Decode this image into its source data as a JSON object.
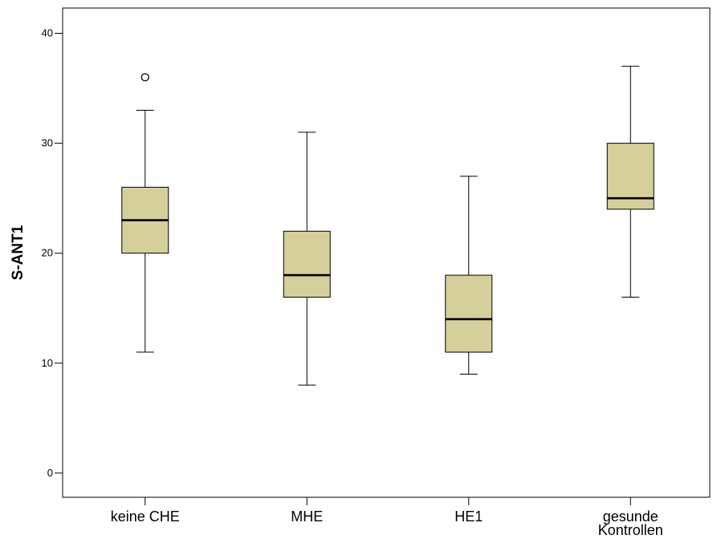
{
  "chart_data": {
    "type": "boxplot",
    "title": "",
    "xlabel": "",
    "ylabel": "S-ANT1",
    "ylim": [
      -2.2,
      42.3
    ],
    "yticks": [
      0,
      10,
      20,
      30,
      40
    ],
    "grid": false,
    "colors": {
      "box_fill": "#d5cf9b",
      "stroke": "#000000",
      "background": "#ffffff"
    },
    "categories": [
      {
        "label_lines": [
          "keine CHE"
        ],
        "min": 11,
        "q1": 20,
        "median": 23,
        "q3": 26,
        "max": 33,
        "outliers": [
          36
        ]
      },
      {
        "label_lines": [
          "MHE"
        ],
        "min": 8,
        "q1": 16,
        "median": 18,
        "q3": 22,
        "max": 31,
        "outliers": []
      },
      {
        "label_lines": [
          "HE1"
        ],
        "min": 9,
        "q1": 11,
        "median": 14,
        "q3": 18,
        "max": 27,
        "outliers": []
      },
      {
        "label_lines": [
          "gesunde",
          "Kontrollen"
        ],
        "min": 16,
        "q1": 24,
        "median": 25,
        "q3": 30,
        "max": 37,
        "outliers": []
      }
    ]
  }
}
